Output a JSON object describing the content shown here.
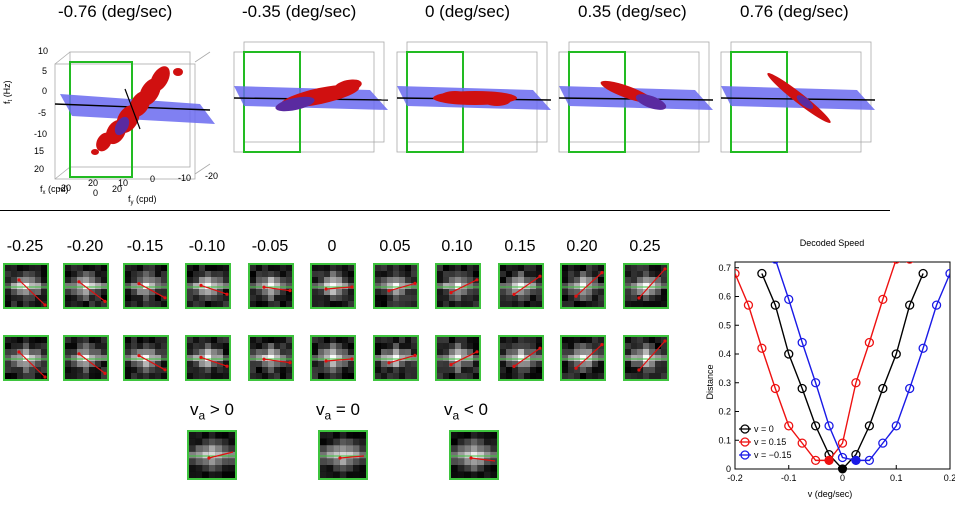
{
  "top_row": {
    "titles": [
      "-0.76 (deg/sec)",
      "-0.35 (deg/sec)",
      "0 (deg/sec)",
      "0.35 (deg/sec)",
      "0.76 (deg/sec)"
    ],
    "axes_labels": {
      "ft": "f",
      "ft_sub": "t",
      "ft_unit": " (Hz)",
      "fx": "f",
      "fx_sub": "x",
      "fx_unit": " (cpd)",
      "fy": "f",
      "fy_sub": "y",
      "fy_unit": " (cpd)"
    },
    "ft_ticks": [
      "10",
      "5",
      "0",
      "-5",
      "-10",
      "15",
      "20"
    ],
    "fx_ticks": [
      "-20",
      "0",
      "20"
    ],
    "fy_ticks": [
      "20",
      "10",
      "0",
      "-10",
      "-20"
    ]
  },
  "grid": {
    "column_labels": [
      "-0.25",
      "-0.20",
      "-0.15",
      "-0.10",
      "-0.05",
      "0",
      "0.05",
      "0.10",
      "0.15",
      "0.20",
      "0.25"
    ]
  },
  "va_labels": [
    {
      "v": "v",
      "sub": "a",
      "rel": " > 0"
    },
    {
      "v": "v",
      "sub": "a",
      "rel": " = 0"
    },
    {
      "v": "v",
      "sub": "a",
      "rel": " < 0"
    }
  ],
  "colors": {
    "thumb_border": "#3ec43e",
    "plane": "#6a6af0",
    "surface_red": "#d01010",
    "surface_purple": "#5a2aa0",
    "series_black": "#000000",
    "series_red": "#ee1111",
    "series_blue": "#1a1ae6"
  },
  "chart_data": {
    "type": "line",
    "title": "Decoded Speed",
    "xlabel": "v (deg/sec)",
    "ylabel": "Distance",
    "xlim": [
      -0.2,
      0.2
    ],
    "ylim": [
      0,
      0.72
    ],
    "xticks": [
      "-0.2",
      "-0.1",
      "0",
      "0.1",
      "0.2"
    ],
    "yticks": [
      "0",
      "0.1",
      "0.2",
      "0.3",
      "0.4",
      "0.5",
      "0.6",
      "0.7"
    ],
    "legend_position": "bottom-left",
    "series": [
      {
        "name": "v = 0",
        "color": "#000000",
        "minimum": [
          0.0,
          0.0
        ],
        "x": [
          -0.15,
          -0.125,
          -0.1,
          -0.075,
          -0.05,
          -0.025,
          0.0,
          0.025,
          0.05,
          0.075,
          0.1,
          0.125,
          0.15
        ],
        "y": [
          0.68,
          0.57,
          0.4,
          0.28,
          0.15,
          0.05,
          0.0,
          0.05,
          0.15,
          0.28,
          0.4,
          0.57,
          0.68
        ]
      },
      {
        "name": "v = 0.15",
        "color": "#ee1111",
        "minimum": [
          -0.025,
          0.03
        ],
        "x": [
          -0.2,
          -0.175,
          -0.15,
          -0.125,
          -0.1,
          -0.075,
          -0.05,
          -0.025,
          0.0,
          0.025,
          0.05,
          0.075,
          0.1,
          0.125
        ],
        "y": [
          0.68,
          0.57,
          0.42,
          0.28,
          0.15,
          0.09,
          0.03,
          0.03,
          0.09,
          0.3,
          0.44,
          0.59,
          0.73,
          0.73
        ]
      },
      {
        "name": "v = −0.15",
        "color": "#1a1ae6",
        "minimum": [
          0.025,
          0.03
        ],
        "x": [
          -0.125,
          -0.1,
          -0.075,
          -0.05,
          -0.025,
          0.0,
          0.025,
          0.05,
          0.075,
          0.1,
          0.125,
          0.15,
          0.175,
          0.2
        ],
        "y": [
          0.73,
          0.59,
          0.44,
          0.3,
          0.15,
          0.04,
          0.03,
          0.03,
          0.09,
          0.15,
          0.28,
          0.42,
          0.57,
          0.68
        ]
      }
    ]
  }
}
